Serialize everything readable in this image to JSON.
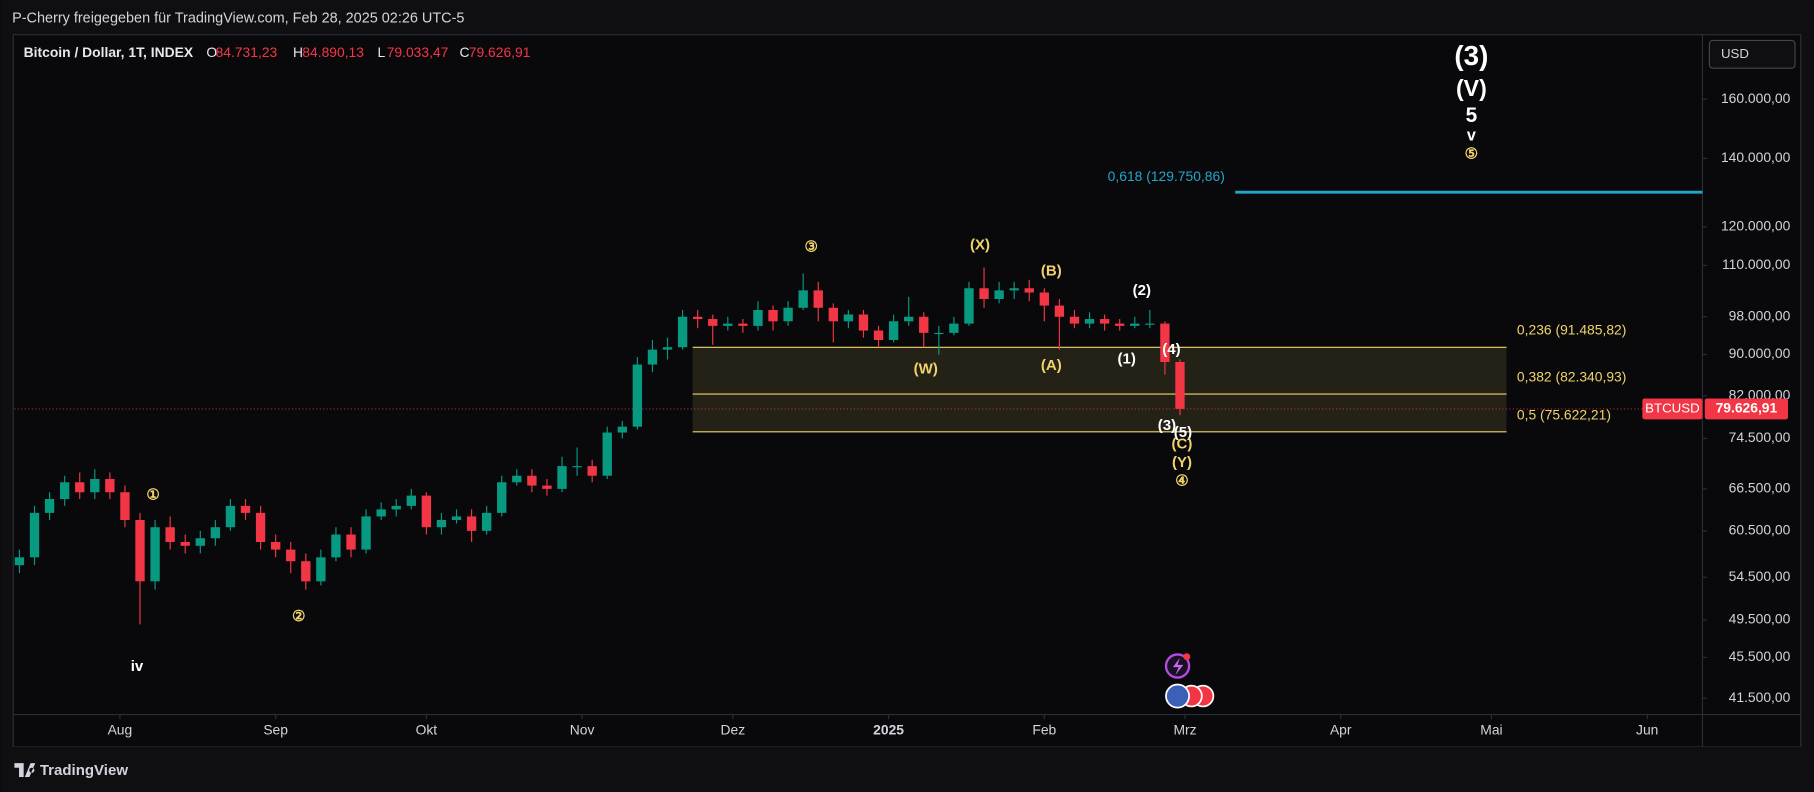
{
  "header": {
    "shared_by": "P-Cherry freigegeben für TradingView.com, Feb 28, 2025 02:26 UTC-5",
    "symbol": "Bitcoin / Dollar, 1T, INDEX",
    "ohlc": [
      {
        "key": "O",
        "value": 84731.23,
        "label": "84.731,23"
      },
      {
        "key": "H",
        "value": 84890.13,
        "label": "84.890,13"
      },
      {
        "key": "L",
        "value": 79033.47,
        "label": "79.033,47"
      },
      {
        "key": "C",
        "value": 79626.91,
        "label": "79.626,91"
      }
    ],
    "currency": "USD",
    "brand": "TradingView"
  },
  "chart_data": {
    "type": "candlestick",
    "up_color": "#089981",
    "down_color": "#f23645",
    "log_scale": true,
    "grid": false,
    "x": [
      1,
      4,
      7,
      10,
      13,
      16,
      19,
      22,
      25,
      28,
      31,
      34,
      37,
      40,
      43,
      46,
      49,
      52,
      55,
      58,
      61,
      64,
      67,
      70,
      73,
      76,
      79,
      82,
      85,
      88,
      91,
      94,
      97,
      100,
      103,
      106,
      109,
      112,
      115,
      118,
      121,
      124,
      127,
      130,
      133,
      136,
      139,
      142,
      145,
      148,
      151,
      154,
      157,
      160,
      163,
      166,
      169,
      172,
      175,
      178,
      181,
      184,
      187,
      190,
      193,
      196,
      199,
      202,
      205,
      208,
      211,
      214,
      217,
      220,
      223,
      226,
      229,
      232
    ],
    "open": [
      56000,
      57000,
      63000,
      65000,
      67500,
      66000,
      68000,
      66000,
      62000,
      54000,
      61000,
      59000,
      58500,
      59500,
      61000,
      64000,
      63000,
      59000,
      58000,
      56500,
      54000,
      57000,
      60000,
      58000,
      62500,
      63500,
      64000,
      65500,
      61000,
      62000,
      62500,
      60500,
      63000,
      67500,
      68500,
      67000,
      66500,
      70000,
      70000,
      68500,
      75500,
      76500,
      88000,
      91000,
      91500,
      98000,
      97500,
      96000,
      96500,
      96000,
      99500,
      97000,
      100000,
      104000,
      100000,
      97000,
      98500,
      95000,
      93000,
      97000,
      98000,
      94500,
      94500,
      96500,
      104500,
      102000,
      104000,
      104500,
      103500,
      100500,
      98000,
      96500,
      97500,
      96500,
      96000,
      96500,
      96500,
      88500
    ],
    "high": [
      58000,
      64000,
      66000,
      68500,
      69000,
      69500,
      69000,
      67000,
      63000,
      62000,
      62500,
      60000,
      60500,
      62000,
      65000,
      65000,
      64000,
      60000,
      59000,
      57500,
      58000,
      61000,
      61000,
      63500,
      64500,
      65000,
      66500,
      66000,
      63000,
      63500,
      63500,
      64000,
      68500,
      69500,
      69500,
      68000,
      71500,
      73000,
      71000,
      76500,
      77500,
      89500,
      93000,
      93500,
      99500,
      99500,
      98500,
      98000,
      97500,
      101500,
      100500,
      101500,
      108000,
      106000,
      101000,
      99500,
      99500,
      96000,
      98500,
      102500,
      99000,
      96000,
      98000,
      106000,
      109500,
      106000,
      106000,
      106500,
      104500,
      102000,
      99500,
      99000,
      98500,
      97500,
      98000,
      99500,
      97000,
      89000
    ],
    "low": [
      55000,
      56000,
      62000,
      64000,
      65000,
      65000,
      65000,
      61000,
      49000,
      53000,
      58000,
      57500,
      57500,
      58500,
      60500,
      62000,
      58000,
      57000,
      55000,
      53000,
      53500,
      56500,
      57000,
      57500,
      62000,
      62500,
      63500,
      60000,
      60000,
      61500,
      59000,
      60000,
      62500,
      67000,
      66000,
      65500,
      66000,
      68500,
      67500,
      68000,
      74500,
      76000,
      86500,
      89000,
      91000,
      95500,
      92000,
      95000,
      94500,
      95000,
      95000,
      96000,
      99500,
      97000,
      92500,
      95500,
      93500,
      91500,
      92500,
      96000,
      91500,
      90000,
      94000,
      96000,
      100000,
      101000,
      102000,
      101500,
      97000,
      91000,
      95500,
      95500,
      95000,
      95000,
      95500,
      95500,
      86000,
      78500
    ],
    "close": [
      57000,
      63000,
      65000,
      67500,
      66000,
      68000,
      66000,
      62000,
      54000,
      61000,
      59000,
      58500,
      59500,
      61000,
      64000,
      63000,
      59000,
      58000,
      56500,
      54000,
      57000,
      60000,
      58000,
      62500,
      63500,
      64000,
      65500,
      61000,
      62000,
      62500,
      60500,
      63000,
      67500,
      68500,
      67000,
      66500,
      70000,
      70000,
      68500,
      75500,
      76500,
      88000,
      91000,
      91500,
      98000,
      97500,
      96000,
      96500,
      96000,
      99500,
      97000,
      100000,
      104000,
      100000,
      97000,
      98500,
      95000,
      93000,
      97000,
      98000,
      94500,
      94500,
      96500,
      104500,
      102000,
      104000,
      104500,
      103500,
      100500,
      98000,
      96500,
      97500,
      96500,
      96000,
      96500,
      96500,
      88500,
      79626.91
    ],
    "xlim": [
      0,
      336
    ],
    "xticks": [
      {
        "value": 21,
        "label": "Aug"
      },
      {
        "value": 52,
        "label": "Sep"
      },
      {
        "value": 82,
        "label": "Okt"
      },
      {
        "value": 113,
        "label": "Nov"
      },
      {
        "value": 143,
        "label": "Dez"
      },
      {
        "value": 174,
        "label": "2025"
      },
      {
        "value": 205,
        "label": "Feb"
      },
      {
        "value": 233,
        "label": "Mrz"
      },
      {
        "value": 264,
        "label": "Apr"
      },
      {
        "value": 294,
        "label": "Mai"
      },
      {
        "value": 325,
        "label": "Jun"
      }
    ],
    "ylim": [
      40000,
      185000
    ],
    "yticks": [
      {
        "value": 41500,
        "label": "41.500,00"
      },
      {
        "value": 45500,
        "label": "45.500,00"
      },
      {
        "value": 49500,
        "label": "49.500,00"
      },
      {
        "value": 54500,
        "label": "54.500,00"
      },
      {
        "value": 60500,
        "label": "60.500,00"
      },
      {
        "value": 66500,
        "label": "66.500,00"
      },
      {
        "value": 74500,
        "label": "74.500,00"
      },
      {
        "value": 82000,
        "label": "82.000,00"
      },
      {
        "value": 90000,
        "label": "90.000,00"
      },
      {
        "value": 98000,
        "label": "98.000,00"
      },
      {
        "value": 110000,
        "label": "110.000,00"
      },
      {
        "value": 120000,
        "label": "120.000,00"
      },
      {
        "value": 140000,
        "label": "140.000,00"
      },
      {
        "value": 160000,
        "label": "160.000,00"
      }
    ],
    "last_price": {
      "value": 79626.91,
      "label": "79.626,91",
      "symbol": "BTCUSD",
      "color": "#f23645"
    },
    "fib_levels": [
      {
        "value": 129750.86,
        "label": "0,618 (129.750,86)",
        "color": "#22a7c9",
        "x_start": 243,
        "x_end": 336
      },
      {
        "value": 91485.82,
        "label": "0,236 (91.485,82)",
        "color": "#f0d36b",
        "x_start": 135,
        "x_end": 297
      },
      {
        "value": 82340.93,
        "label": "0,382 (82.340,93)",
        "color": "#f0d36b",
        "x_start": 135,
        "x_end": 297
      },
      {
        "value": 75622.21,
        "label": "0,5 (75.622,21)",
        "color": "#f0d36b",
        "x_start": 135,
        "x_end": 297
      }
    ],
    "annotations": [
      {
        "text": "(3)",
        "x": 290,
        "y": 175700,
        "color": "#ffffff"
      },
      {
        "text": "(V)",
        "x": 290,
        "y": 163300,
        "color": "#ffffff"
      },
      {
        "text": "5",
        "x": 290,
        "y": 153900,
        "color": "#ffffff"
      },
      {
        "text": "v",
        "x": 290,
        "y": 147200,
        "color": "#ffffff"
      },
      {
        "text": "⑤",
        "x": 290,
        "y": 141200,
        "color": "#f0d36b"
      },
      {
        "text": "①",
        "x": 27.6,
        "y": 65500,
        "color": "#f0d36b"
      },
      {
        "text": "②",
        "x": 56.6,
        "y": 49800,
        "color": "#f0d36b"
      },
      {
        "text": "iv",
        "x": 24.4,
        "y": 44500,
        "color": "#ffffff"
      },
      {
        "text": "③",
        "x": 158.6,
        "y": 114600,
        "color": "#f0d36b"
      },
      {
        "text": "(X)",
        "x": 192.2,
        "y": 115000,
        "color": "#f0d36b"
      },
      {
        "text": "(B)",
        "x": 206.4,
        "y": 108500,
        "color": "#f0d36b"
      },
      {
        "text": "(2)",
        "x": 224.4,
        "y": 103800,
        "color": "#ffffff"
      },
      {
        "text": "(W)",
        "x": 181.4,
        "y": 87000,
        "color": "#f0d36b"
      },
      {
        "text": "(A)",
        "x": 206.4,
        "y": 87700,
        "color": "#f0d36b"
      },
      {
        "text": "(1)",
        "x": 221.4,
        "y": 89000,
        "color": "#ffffff"
      },
      {
        "text": "(4)",
        "x": 230.3,
        "y": 90900,
        "color": "#ffffff"
      },
      {
        "text": "(3)",
        "x": 229.4,
        "y": 76600,
        "color": "#ffffff"
      },
      {
        "text": "(5)",
        "x": 232.6,
        "y": 75400,
        "color": "#ffffff"
      },
      {
        "text": "(C)",
        "x": 232.4,
        "y": 73500,
        "color": "#f0d36b"
      },
      {
        "text": "(Y)",
        "x": 232.4,
        "y": 70500,
        "color": "#f0d36b"
      },
      {
        "text": "④",
        "x": 232.4,
        "y": 67600,
        "color": "#f0d36b"
      }
    ]
  }
}
